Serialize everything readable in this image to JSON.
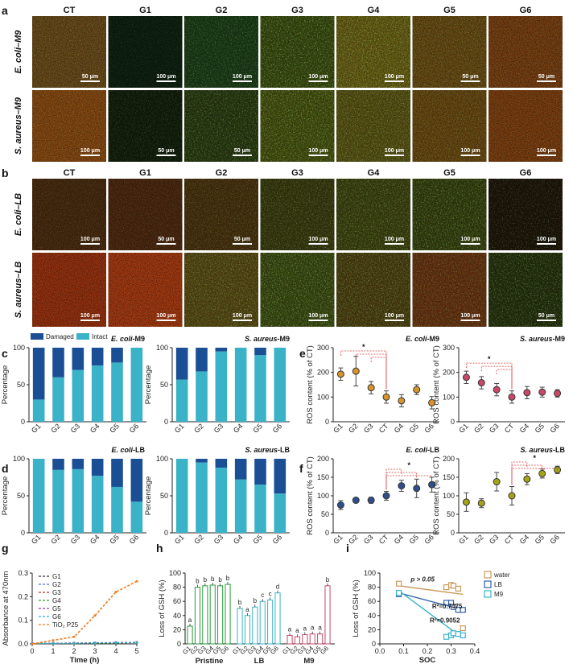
{
  "panel_labels": [
    "a",
    "b",
    "c",
    "d",
    "e",
    "f",
    "g",
    "h",
    "i"
  ],
  "micro": {
    "columns": [
      "CT",
      "G1",
      "G2",
      "G3",
      "G4",
      "G5",
      "G6"
    ],
    "panel_a_rows": [
      {
        "label": "E. coli–M9",
        "scales": [
          "50 μm",
          "100 μm",
          "100 μm",
          "100 μm",
          "100 μm",
          "50 μm",
          "50 μm"
        ],
        "tints": [
          "#6b4a1a",
          "#0e2010",
          "#1c3d18",
          "#3a4a10",
          "#6a5e14",
          "#6a4a14",
          "#7a3e12"
        ],
        "greens": [
          0.25,
          0.15,
          0.35,
          0.6,
          0.55,
          0.35,
          0.25
        ]
      },
      {
        "label": "S. aureus–M9",
        "scales": [
          "100 μm",
          "50 μm",
          "50 μm",
          "100 μm",
          "100 μm",
          "100 μm",
          "100 μm"
        ],
        "tints": [
          "#8a4a12",
          "#121e0c",
          "#2a3a12",
          "#46500f",
          "#5a5214",
          "#6a4812",
          "#7e3e10"
        ],
        "greens": [
          0.2,
          0.25,
          0.45,
          0.6,
          0.45,
          0.3,
          0.2
        ]
      }
    ],
    "panel_b_rows": [
      {
        "label": "E. coli–LB",
        "scales": [
          "100 μm",
          "50 μm",
          "50 μm",
          "100 μm",
          "100 μm",
          "100 μm",
          "100 μm"
        ],
        "tints": [
          "#4a2a10",
          "#4e2810",
          "#4a3210",
          "#3a3a10",
          "#3e4210",
          "#36400f",
          "#1e140a"
        ],
        "greens": [
          0.2,
          0.2,
          0.3,
          0.4,
          0.5,
          0.55,
          0.3
        ]
      },
      {
        "label": "S. aureus–LB",
        "scales": [
          "100 μm",
          "100 μm",
          "100 μm",
          "100 μm",
          "100 μm",
          "100 μm",
          "50 μm"
        ],
        "tints": [
          "#9a3210",
          "#a83a12",
          "#5a4a14",
          "#3c4a12",
          "#4e4012",
          "#6a3412",
          "#26300e"
        ],
        "greens": [
          0.1,
          0.1,
          0.45,
          0.6,
          0.5,
          0.35,
          0.5
        ]
      }
    ]
  },
  "chart_data": [
    {
      "id": "c-ecoli-m9",
      "type": "bar",
      "stacked": true,
      "title": "E. coli-M9",
      "ylabel": "Percentage",
      "ylim": [
        0,
        100
      ],
      "yticks": [
        0,
        50,
        100
      ],
      "categories": [
        "G1",
        "G2",
        "G3",
        "G4",
        "G5",
        "G6"
      ],
      "series": [
        {
          "name": "Intact",
          "color": "#3ab3c8",
          "values": [
            30,
            60,
            70,
            76,
            80,
            100
          ]
        },
        {
          "name": "Damaged",
          "color": "#1a4f96",
          "values": [
            70,
            40,
            30,
            24,
            20,
            0
          ]
        }
      ],
      "legend": {
        "entries": [
          "Damaged",
          "Intact"
        ],
        "placement": "top"
      }
    },
    {
      "id": "c-saureus-m9",
      "type": "bar",
      "stacked": true,
      "title": "S. aureus-M9",
      "ylabel": "Percentage",
      "ylim": [
        0,
        100
      ],
      "yticks": [
        0,
        50,
        100
      ],
      "categories": [
        "G1",
        "G2",
        "G3",
        "G4",
        "G5",
        "G6"
      ],
      "series": [
        {
          "name": "Intact",
          "color": "#3ab3c8",
          "values": [
            57,
            68,
            95,
            100,
            90,
            100
          ]
        },
        {
          "name": "Damaged",
          "color": "#1a4f96",
          "values": [
            43,
            32,
            5,
            0,
            10,
            0
          ]
        }
      ]
    },
    {
      "id": "d-ecoli-lb",
      "type": "bar",
      "stacked": true,
      "title": "E. coli-LB",
      "ylabel": "Percentage",
      "ylim": [
        0,
        100
      ],
      "yticks": [
        0,
        50,
        100
      ],
      "categories": [
        "G1",
        "G2",
        "G3",
        "G4",
        "G5",
        "G6"
      ],
      "series": [
        {
          "name": "Intact",
          "color": "#3ab3c8",
          "values": [
            100,
            85,
            86,
            77,
            62,
            42
          ]
        },
        {
          "name": "Damaged",
          "color": "#1a4f96",
          "values": [
            0,
            15,
            14,
            23,
            38,
            58
          ]
        }
      ]
    },
    {
      "id": "d-saureus-lb",
      "type": "bar",
      "stacked": true,
      "title": "S. aureus-LB",
      "ylabel": "Percentage",
      "ylim": [
        0,
        100
      ],
      "yticks": [
        0,
        50,
        100
      ],
      "categories": [
        "G1",
        "G2",
        "G3",
        "G4",
        "G5",
        "G6"
      ],
      "series": [
        {
          "name": "Intact",
          "color": "#3ab3c8",
          "values": [
            100,
            95,
            88,
            72,
            65,
            53
          ]
        },
        {
          "name": "Damaged",
          "color": "#1a4f96",
          "values": [
            0,
            5,
            12,
            28,
            35,
            47
          ]
        }
      ]
    },
    {
      "id": "e-ecoli-m9",
      "type": "scatter",
      "title": "E. coli-M9",
      "ylabel": "ROS content (% of CT)",
      "ylim": [
        0,
        300
      ],
      "yticks": [
        0,
        100,
        200,
        300
      ],
      "categories": [
        "G1",
        "G2",
        "G3",
        "CT",
        "G4",
        "G5",
        "G6"
      ],
      "color": "#d9932b",
      "values": [
        193,
        205,
        138,
        100,
        85,
        130,
        77
      ],
      "errors": [
        25,
        60,
        25,
        25,
        25,
        20,
        25
      ],
      "significance": {
        "label": "*",
        "from": "G1",
        "to": "CT"
      }
    },
    {
      "id": "e-saureus-m9",
      "type": "scatter",
      "title": "S. aureus-M9",
      "ylabel": "ROS content (% of CT)",
      "ylim": [
        0,
        300
      ],
      "yticks": [
        0,
        100,
        200,
        300
      ],
      "categories": [
        "G1",
        "G2",
        "G3",
        "CT",
        "G4",
        "G5",
        "G6"
      ],
      "color": "#c9486a",
      "values": [
        180,
        158,
        130,
        100,
        118,
        120,
        115
      ],
      "errors": [
        25,
        25,
        25,
        25,
        25,
        20,
        15
      ],
      "significance": {
        "label": "*",
        "from": "G1",
        "to": "CT"
      }
    },
    {
      "id": "f-ecoli-lb",
      "type": "scatter",
      "title": "E. coli-LB",
      "ylabel": "ROS content (% of CT)",
      "ylim": [
        0,
        200
      ],
      "yticks": [
        0,
        50,
        100,
        150,
        200
      ],
      "categories": [
        "G1",
        "G2",
        "G3",
        "CT",
        "G4",
        "G5",
        "G6"
      ],
      "color": "#2f4f8a",
      "values": [
        75,
        88,
        88,
        100,
        127,
        120,
        130
      ],
      "errors": [
        12,
        5,
        8,
        12,
        15,
        25,
        20
      ],
      "significance": {
        "label": "*",
        "from": "CT",
        "to": "G6"
      }
    },
    {
      "id": "f-saureus-lb",
      "type": "scatter",
      "title": "S. aureus-LB",
      "ylabel": "ROS content (% of CT)",
      "ylim": [
        0,
        200
      ],
      "yticks": [
        0,
        50,
        100,
        150,
        200
      ],
      "categories": [
        "G1",
        "G2",
        "G3",
        "CT",
        "G4",
        "G5",
        "G6"
      ],
      "color": "#a4a418",
      "values": [
        83,
        80,
        138,
        100,
        145,
        160,
        170
      ],
      "errors": [
        25,
        12,
        25,
        25,
        15,
        12,
        10
      ],
      "significance": {
        "label": "*",
        "from": "CT",
        "to": "G6"
      }
    },
    {
      "id": "g-absorbance",
      "type": "line",
      "xlabel": "Time (h)",
      "ylabel": "Absorbance at 470nm",
      "xlim": [
        0,
        5
      ],
      "ylim": [
        0,
        0.3
      ],
      "xticks": [
        0,
        1,
        2,
        3,
        4,
        5
      ],
      "yticks": [
        0.0,
        0.1,
        0.2,
        0.3
      ],
      "x": [
        0,
        1,
        2,
        3,
        4,
        5
      ],
      "series": [
        {
          "name": "G1",
          "color": "#333333",
          "values": [
            0.002,
            0.003,
            0.004,
            0.004,
            0.005,
            0.006
          ]
        },
        {
          "name": "G2",
          "color": "#4b6fd6",
          "values": [
            0.002,
            0.003,
            0.003,
            0.004,
            0.004,
            0.005
          ]
        },
        {
          "name": "G3",
          "color": "#b03030",
          "values": [
            0.002,
            0.002,
            0.003,
            0.004,
            0.005,
            0.006
          ]
        },
        {
          "name": "G4",
          "color": "#3a9a3a",
          "values": [
            0.001,
            0.002,
            0.003,
            0.003,
            0.004,
            0.005
          ]
        },
        {
          "name": "G5",
          "color": "#8a3aa8",
          "values": [
            0.002,
            0.003,
            0.004,
            0.005,
            0.006,
            0.007
          ]
        },
        {
          "name": "G6",
          "color": "#2ab0c8",
          "values": [
            0.002,
            0.002,
            0.003,
            0.004,
            0.005,
            0.006
          ]
        },
        {
          "name": "TiO₂ P25",
          "color": "#f07a1c",
          "values": [
            0.0,
            0.015,
            0.03,
            0.12,
            0.22,
            0.265
          ]
        }
      ]
    },
    {
      "id": "h-gsh",
      "type": "bar",
      "ylabel": "Loss of GSH (%)",
      "ylim": [
        0,
        100
      ],
      "yticks": [
        0,
        20,
        40,
        60,
        80,
        100
      ],
      "groups": [
        {
          "name": "Pristine",
          "color": "#2a9a3a",
          "categories": [
            "G1",
            "G2",
            "G3",
            "G4",
            "G5",
            "G6"
          ],
          "values": [
            25,
            80,
            82,
            83,
            82,
            84
          ],
          "letters": [
            "a",
            "b",
            "b",
            "b",
            "b",
            "b"
          ]
        },
        {
          "name": "LB",
          "color": "#3ab3c8",
          "categories": [
            "G1",
            "G2",
            "G3",
            "G4",
            "G5",
            "G6"
          ],
          "values": [
            50,
            40,
            52,
            60,
            62,
            72
          ],
          "letters": [
            "b",
            "a",
            "b",
            "c",
            "c",
            "d"
          ]
        },
        {
          "name": "M9",
          "color": "#c9486a",
          "categories": [
            "G1",
            "G2",
            "G3",
            "G4",
            "G5",
            "G6"
          ],
          "values": [
            12,
            10,
            13,
            14,
            14,
            82
          ],
          "letters": [
            "a",
            "a",
            "a",
            "a",
            "a",
            "b"
          ]
        }
      ]
    },
    {
      "id": "i-soc",
      "type": "scatter",
      "xlabel": "SOC",
      "ylabel": "Loss of GSH (%)",
      "xlim": [
        0,
        0.4
      ],
      "ylim": [
        0,
        100
      ],
      "xticks": [
        0.0,
        0.1,
        0.2,
        0.3,
        0.4
      ],
      "yticks": [
        0,
        20,
        40,
        60,
        80,
        100
      ],
      "series": [
        {
          "name": "water",
          "color": "#c99a5a",
          "x": [
            0.08,
            0.28,
            0.3,
            0.31,
            0.33,
            0.35
          ],
          "y": [
            85,
            80,
            83,
            82,
            78,
            22
          ],
          "fit": [
            [
              0.08,
              82
            ],
            [
              0.35,
              70
            ]
          ]
        },
        {
          "name": "LB",
          "color": "#2f5fa8",
          "x": [
            0.08,
            0.28,
            0.3,
            0.31,
            0.33,
            0.35
          ],
          "y": [
            70,
            58,
            58,
            52,
            48,
            48
          ],
          "fit": [
            [
              0.08,
              72
            ],
            [
              0.35,
              48
            ]
          ]
        },
        {
          "name": "M9",
          "color": "#3ab3c8",
          "x": [
            0.08,
            0.28,
            0.3,
            0.31,
            0.33,
            0.35
          ],
          "y": [
            72,
            10,
            12,
            15,
            14,
            12
          ],
          "fit": [
            [
              0.08,
              75
            ],
            [
              0.35,
              8
            ]
          ]
        }
      ],
      "annotations": [
        "p > 0.05",
        "R²=0.7475",
        "R²=0.9052"
      ]
    }
  ],
  "g_extra": {
    "legend_title": ""
  },
  "h_group_labels": [
    "Pristine",
    "LB",
    "M9"
  ]
}
